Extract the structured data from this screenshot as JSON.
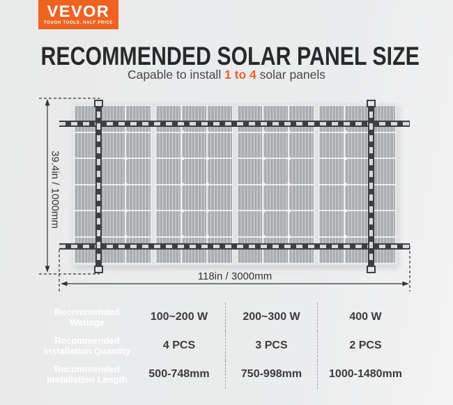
{
  "brand": {
    "name": "VEVOR",
    "tagline": "TOUGH TOOLS, HALF PRICE"
  },
  "header": {
    "title": "RECOMMENDED SOLAR PANEL SIZE",
    "subtitle_prefix": "Capable to install ",
    "subtitle_highlight": "1 to 4",
    "subtitle_suffix": " solar panels"
  },
  "diagram": {
    "height_label": "39.4in / 1000mm",
    "width_label": "118in / 3000mm",
    "panel_count": 4,
    "panel_columns": 3,
    "panel_rows": 6
  },
  "table": {
    "rows": [
      {
        "label_line1": "Recommended",
        "label_line2": "Wattage",
        "values": [
          "100~200 W",
          "200~300 W",
          "400 W"
        ]
      },
      {
        "label_line1": "Recommended",
        "label_line2": "Installation Quantity",
        "values": [
          "4 PCS",
          "3 PCS",
          "2 PCS"
        ]
      },
      {
        "label_line1": "Recommended",
        "label_line2": "Installation Length",
        "values": [
          "500-748mm",
          "750-998mm",
          "1000-1480mm"
        ]
      }
    ]
  },
  "colors": {
    "brand_orange": "#EF6321",
    "accent_orange": "#E8622D",
    "label_orange": "#F0672B",
    "label_orange_dark": "#E0602B",
    "row_light": "#D3D4D5",
    "row_dark": "#B9BABB",
    "line_color": "#333333"
  }
}
